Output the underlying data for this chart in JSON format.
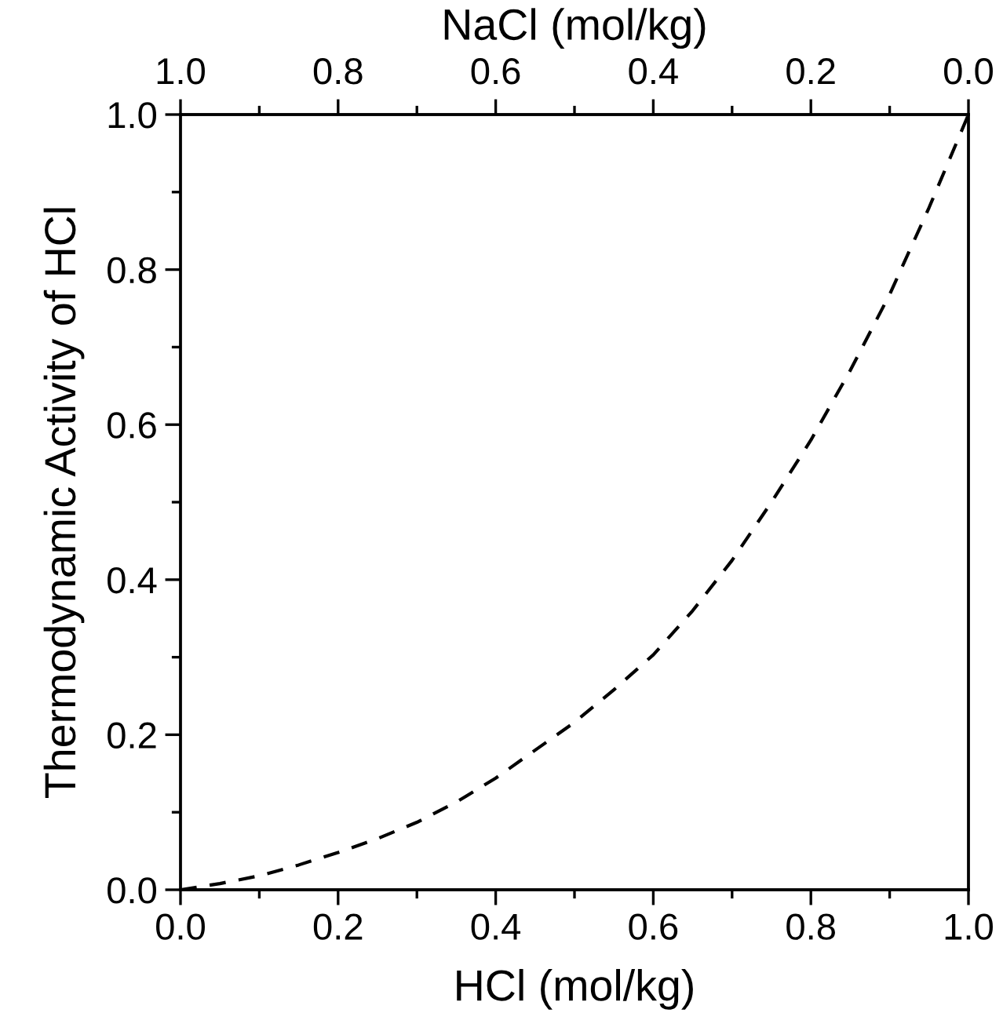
{
  "chart_data": {
    "type": "line",
    "xlabel": "HCl (mol/kg)",
    "ylabel": "Thermodynamic Activity of HCl",
    "x2label": "NaCl (mol/kg)",
    "xlim": [
      0,
      1
    ],
    "ylim": [
      0,
      1
    ],
    "x2lim": [
      1,
      0
    ],
    "xticks": [
      {
        "value": 0,
        "label": "0.0"
      },
      {
        "value": 0.2,
        "label": "0.2"
      },
      {
        "value": 0.4,
        "label": "0.4"
      },
      {
        "value": 0.6,
        "label": "0.6"
      },
      {
        "value": 0.8,
        "label": "0.8"
      },
      {
        "value": 1,
        "label": "1.0"
      }
    ],
    "yticks": [
      {
        "value": 0,
        "label": "0.0"
      },
      {
        "value": 0.2,
        "label": "0.2"
      },
      {
        "value": 0.4,
        "label": "0.4"
      },
      {
        "value": 0.6,
        "label": "0.6"
      },
      {
        "value": 0.8,
        "label": "0.8"
      },
      {
        "value": 1,
        "label": "1.0"
      }
    ],
    "x2ticks": [
      {
        "value": 1,
        "label": "1.0"
      },
      {
        "value": 0.8,
        "label": "0.8"
      },
      {
        "value": 0.6,
        "label": "0.6"
      },
      {
        "value": 0.4,
        "label": "0.4"
      },
      {
        "value": 0.2,
        "label": "0.2"
      },
      {
        "value": 0,
        "label": "0.0"
      }
    ],
    "x": [
      0,
      0.05,
      0.1,
      0.15,
      0.2,
      0.25,
      0.3,
      0.35,
      0.4,
      0.45,
      0.5,
      0.55,
      0.6,
      0.65,
      0.7,
      0.75,
      0.8,
      0.85,
      0.9,
      0.95,
      1.0
    ],
    "series": [
      {
        "color": "#000000",
        "line_style": "dashed",
        "values": [
          0,
          0.008,
          0.018,
          0.032,
          0.048,
          0.066,
          0.087,
          0.113,
          0.144,
          0.18,
          0.216,
          0.258,
          0.303,
          0.36,
          0.425,
          0.5,
          0.58,
          0.67,
          0.768,
          0.88,
          1.0
        ]
      }
    ],
    "grid": false,
    "legend": false,
    "marker": "none"
  }
}
